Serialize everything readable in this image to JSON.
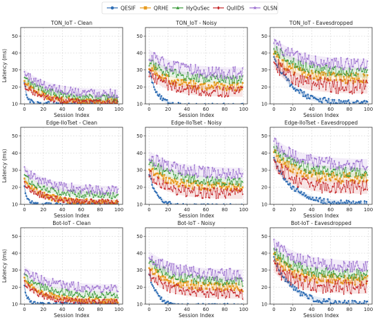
{
  "figure": {
    "legend": [
      {
        "name": "QESIF",
        "color": "#2e6db4",
        "marker": "circle"
      },
      {
        "name": "QRHE",
        "color": "#e89a1c",
        "marker": "square"
      },
      {
        "name": "HyQuSec",
        "color": "#3a9a3a",
        "marker": "triangle"
      },
      {
        "name": "QuIIDS",
        "color": "#c6282b",
        "marker": "diamond"
      },
      {
        "name": "QLSN",
        "color": "#9b6fcf",
        "marker": "star"
      }
    ]
  },
  "chart_data": [
    {
      "type": "line",
      "title": "TON_IoT - Clean",
      "xlabel": "Session Index",
      "ylabel": "Latency (ms)",
      "xlim": [
        -4,
        104
      ],
      "ylim": [
        10,
        55
      ],
      "xticks": [
        0,
        20,
        40,
        60,
        80,
        100
      ],
      "yticks": [
        10,
        20,
        30,
        40,
        50
      ],
      "grid": true,
      "series": [
        {
          "name": "QESIF",
          "x_range": [
            0,
            99
          ],
          "start": 22,
          "end": 10,
          "decay_rate": 0.3,
          "noise": 0.8
        },
        {
          "name": "QRHE",
          "x_range": [
            0,
            99
          ],
          "start": 23,
          "end": 11,
          "decay_rate": 0.05,
          "noise": 1.0
        },
        {
          "name": "HyQuSec",
          "x_range": [
            0,
            99
          ],
          "start": 25,
          "end": 13,
          "decay_rate": 0.04,
          "noise": 1.2
        },
        {
          "name": "QuIIDS",
          "x_range": [
            0,
            99
          ],
          "start": 21,
          "end": 10.5,
          "decay_rate": 0.05,
          "noise": 1.0
        },
        {
          "name": "QLSN",
          "x_range": [
            0,
            99
          ],
          "start": 28,
          "end": 16,
          "decay_rate": 0.04,
          "noise": 1.5
        }
      ]
    },
    {
      "type": "line",
      "title": "TON_IoT - Noisy",
      "xlabel": "Session Index",
      "ylabel": "",
      "xlim": [
        -4,
        104
      ],
      "ylim": [
        10,
        55
      ],
      "xticks": [
        0,
        20,
        40,
        60,
        80,
        100
      ],
      "yticks": [
        10,
        20,
        30,
        40,
        50
      ],
      "grid": true,
      "series": [
        {
          "name": "QESIF",
          "x_range": [
            0,
            99
          ],
          "start": 30,
          "end": 9,
          "decay_rate": 0.12,
          "noise": 0.7
        },
        {
          "name": "QRHE",
          "x_range": [
            0,
            99
          ],
          "start": 33,
          "end": 20,
          "decay_rate": 0.05,
          "noise": 1.5
        },
        {
          "name": "HyQuSec",
          "x_range": [
            0,
            99
          ],
          "start": 35,
          "end": 24,
          "decay_rate": 0.04,
          "noise": 1.5
        },
        {
          "name": "QuIIDS",
          "x_range": [
            0,
            99
          ],
          "start": 29,
          "end": 17,
          "decay_rate": 0.05,
          "noise": 1.8
        },
        {
          "name": "QLSN",
          "x_range": [
            0,
            99
          ],
          "start": 39,
          "end": 28,
          "decay_rate": 0.04,
          "noise": 2.0
        }
      ]
    },
    {
      "type": "line",
      "title": "TON_IoT - Eavesdropped",
      "xlabel": "Session Index",
      "ylabel": "",
      "xlim": [
        -4,
        104
      ],
      "ylim": [
        10,
        55
      ],
      "xticks": [
        0,
        20,
        40,
        60,
        80,
        100
      ],
      "yticks": [
        10,
        20,
        30,
        40,
        50
      ],
      "grid": true,
      "series": [
        {
          "name": "QESIF",
          "x_range": [
            0,
            99
          ],
          "start": 38,
          "end": 10,
          "decay_rate": 0.05,
          "noise": 1.0
        },
        {
          "name": "QRHE",
          "x_range": [
            0,
            99
          ],
          "start": 40,
          "end": 25,
          "decay_rate": 0.05,
          "noise": 1.8
        },
        {
          "name": "HyQuSec",
          "x_range": [
            0,
            99
          ],
          "start": 43,
          "end": 28,
          "decay_rate": 0.04,
          "noise": 1.8
        },
        {
          "name": "QuIIDS",
          "x_range": [
            0,
            99
          ],
          "start": 35,
          "end": 20,
          "decay_rate": 0.05,
          "noise": 2.5
        },
        {
          "name": "QLSN",
          "x_range": [
            0,
            99
          ],
          "start": 46,
          "end": 33,
          "decay_rate": 0.04,
          "noise": 2.0
        }
      ]
    },
    {
      "type": "line",
      "title": "Edge-IIoTset - Clean",
      "xlabel": "Session Index",
      "ylabel": "Latency (ms)",
      "xlim": [
        -4,
        104
      ],
      "ylim": [
        10,
        55
      ],
      "xticks": [
        0,
        20,
        40,
        60,
        80,
        100
      ],
      "yticks": [
        10,
        20,
        30,
        40,
        50
      ],
      "grid": true,
      "series": [
        {
          "name": "QESIF",
          "x_range": [
            0,
            99
          ],
          "start": 20,
          "end": 10,
          "decay_rate": 0.3,
          "noise": 0.6
        },
        {
          "name": "QRHE",
          "x_range": [
            0,
            99
          ],
          "start": 24,
          "end": 11,
          "decay_rate": 0.05,
          "noise": 1.0
        },
        {
          "name": "HyQuSec",
          "x_range": [
            0,
            99
          ],
          "start": 26,
          "end": 15,
          "decay_rate": 0.04,
          "noise": 1.2
        },
        {
          "name": "QuIIDS",
          "x_range": [
            0,
            99
          ],
          "start": 22,
          "end": 11,
          "decay_rate": 0.05,
          "noise": 1.0
        },
        {
          "name": "QLSN",
          "x_range": [
            0,
            99
          ],
          "start": 30,
          "end": 18,
          "decay_rate": 0.04,
          "noise": 1.5
        }
      ]
    },
    {
      "type": "line",
      "title": "Edge-IIoTset - Noisy",
      "xlabel": "Session Index",
      "ylabel": "",
      "xlim": [
        -4,
        104
      ],
      "ylim": [
        10,
        55
      ],
      "xticks": [
        0,
        20,
        40,
        60,
        80,
        100
      ],
      "yticks": [
        10,
        20,
        30,
        40,
        50
      ],
      "grid": true,
      "series": [
        {
          "name": "QESIF",
          "x_range": [
            0,
            99
          ],
          "start": 28,
          "end": 9,
          "decay_rate": 0.12,
          "noise": 0.7
        },
        {
          "name": "QRHE",
          "x_range": [
            0,
            99
          ],
          "start": 32,
          "end": 20,
          "decay_rate": 0.05,
          "noise": 1.5
        },
        {
          "name": "HyQuSec",
          "x_range": [
            0,
            99
          ],
          "start": 35,
          "end": 23,
          "decay_rate": 0.04,
          "noise": 1.5
        },
        {
          "name": "QuIIDS",
          "x_range": [
            0,
            99
          ],
          "start": 28,
          "end": 16,
          "decay_rate": 0.05,
          "noise": 1.8
        },
        {
          "name": "QLSN",
          "x_range": [
            0,
            99
          ],
          "start": 38,
          "end": 28,
          "decay_rate": 0.04,
          "noise": 2.0
        }
      ]
    },
    {
      "type": "line",
      "title": "Edge-IIoTset - Eavesdropped",
      "xlabel": "Session Index",
      "ylabel": "",
      "xlim": [
        -4,
        104
      ],
      "ylim": [
        10,
        55
      ],
      "xticks": [
        0,
        20,
        40,
        60,
        80,
        100
      ],
      "yticks": [
        10,
        20,
        30,
        40,
        50
      ],
      "grid": true,
      "series": [
        {
          "name": "QESIF",
          "x_range": [
            0,
            99
          ],
          "start": 37,
          "end": 10,
          "decay_rate": 0.05,
          "noise": 1.0
        },
        {
          "name": "QRHE",
          "x_range": [
            0,
            99
          ],
          "start": 40,
          "end": 25,
          "decay_rate": 0.05,
          "noise": 1.8
        },
        {
          "name": "HyQuSec",
          "x_range": [
            0,
            99
          ],
          "start": 43,
          "end": 28,
          "decay_rate": 0.04,
          "noise": 1.8
        },
        {
          "name": "QuIIDS",
          "x_range": [
            0,
            99
          ],
          "start": 35,
          "end": 20,
          "decay_rate": 0.05,
          "noise": 2.5
        },
        {
          "name": "QLSN",
          "x_range": [
            0,
            99
          ],
          "start": 46,
          "end": 33,
          "decay_rate": 0.04,
          "noise": 2.0
        }
      ]
    },
    {
      "type": "line",
      "title": "Bot-IoT - Clean",
      "xlabel": "Session Index",
      "ylabel": "Latency (ms)",
      "xlim": [
        -4,
        104
      ],
      "ylim": [
        10,
        55
      ],
      "xticks": [
        0,
        20,
        40,
        60,
        80,
        100
      ],
      "yticks": [
        10,
        20,
        30,
        40,
        50
      ],
      "grid": true,
      "series": [
        {
          "name": "QESIF",
          "x_range": [
            0,
            99
          ],
          "start": 20,
          "end": 10,
          "decay_rate": 0.3,
          "noise": 0.6
        },
        {
          "name": "QRHE",
          "x_range": [
            0,
            99
          ],
          "start": 24,
          "end": 12,
          "decay_rate": 0.05,
          "noise": 1.0
        },
        {
          "name": "HyQuSec",
          "x_range": [
            0,
            99
          ],
          "start": 26,
          "end": 15,
          "decay_rate": 0.04,
          "noise": 1.2
        },
        {
          "name": "QuIIDS",
          "x_range": [
            0,
            99
          ],
          "start": 22,
          "end": 11,
          "decay_rate": 0.05,
          "noise": 1.0
        },
        {
          "name": "QLSN",
          "x_range": [
            0,
            99
          ],
          "start": 30,
          "end": 19,
          "decay_rate": 0.04,
          "noise": 1.5
        }
      ]
    },
    {
      "type": "line",
      "title": "Bot-IoT - Noisy",
      "xlabel": "Session Index",
      "ylabel": "",
      "xlim": [
        -4,
        104
      ],
      "ylim": [
        10,
        55
      ],
      "xticks": [
        0,
        20,
        40,
        60,
        80,
        100
      ],
      "yticks": [
        10,
        20,
        30,
        40,
        50
      ],
      "grid": true,
      "series": [
        {
          "name": "QESIF",
          "x_range": [
            0,
            99
          ],
          "start": 28,
          "end": 9,
          "decay_rate": 0.12,
          "noise": 0.7
        },
        {
          "name": "QRHE",
          "x_range": [
            0,
            99
          ],
          "start": 32,
          "end": 20,
          "decay_rate": 0.05,
          "noise": 1.5
        },
        {
          "name": "HyQuSec",
          "x_range": [
            0,
            99
          ],
          "start": 35,
          "end": 23,
          "decay_rate": 0.04,
          "noise": 1.5
        },
        {
          "name": "QuIIDS",
          "x_range": [
            0,
            99
          ],
          "start": 28,
          "end": 16,
          "decay_rate": 0.05,
          "noise": 1.8
        },
        {
          "name": "QLSN",
          "x_range": [
            0,
            99
          ],
          "start": 38,
          "end": 27,
          "decay_rate": 0.04,
          "noise": 2.0
        }
      ]
    },
    {
      "type": "line",
      "title": "Bot-IoT - Eavesdropped",
      "xlabel": "Session Index",
      "ylabel": "",
      "xlim": [
        -4,
        104
      ],
      "ylim": [
        10,
        55
      ],
      "xticks": [
        0,
        20,
        40,
        60,
        80,
        100
      ],
      "yticks": [
        10,
        20,
        30,
        40,
        50
      ],
      "grid": true,
      "series": [
        {
          "name": "QESIF",
          "x_range": [
            0,
            99
          ],
          "start": 37,
          "end": 10,
          "decay_rate": 0.05,
          "noise": 1.0
        },
        {
          "name": "QRHE",
          "x_range": [
            0,
            99
          ],
          "start": 38,
          "end": 24,
          "decay_rate": 0.05,
          "noise": 1.8
        },
        {
          "name": "HyQuSec",
          "x_range": [
            0,
            99
          ],
          "start": 41,
          "end": 27,
          "decay_rate": 0.04,
          "noise": 1.8
        },
        {
          "name": "QuIIDS",
          "x_range": [
            0,
            99
          ],
          "start": 33,
          "end": 20,
          "decay_rate": 0.05,
          "noise": 2.5
        },
        {
          "name": "QLSN",
          "x_range": [
            0,
            99
          ],
          "start": 46,
          "end": 32,
          "decay_rate": 0.04,
          "noise": 2.0
        }
      ]
    }
  ]
}
